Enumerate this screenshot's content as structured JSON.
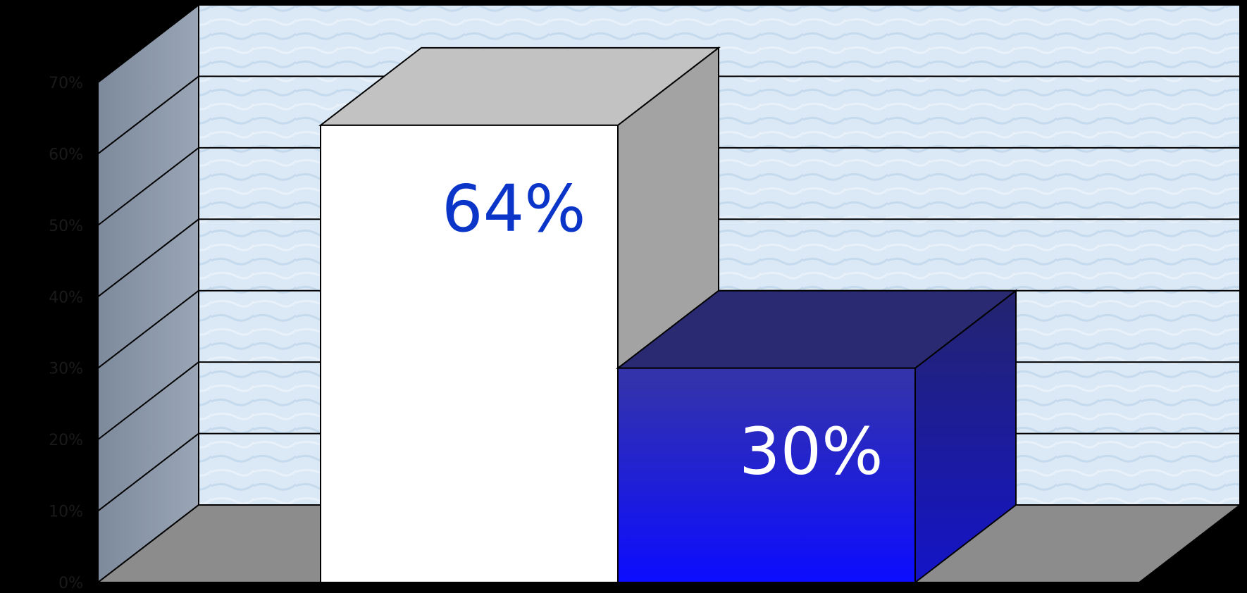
{
  "chart_data": {
    "type": "bar",
    "categories": [
      "",
      ""
    ],
    "values": [
      64,
      30
    ],
    "data_labels": [
      "64%",
      "30%"
    ],
    "ylim": [
      0,
      70
    ],
    "yticks": [
      0,
      10,
      20,
      30,
      40,
      50,
      60,
      70
    ],
    "ytick_labels": [
      "0%",
      "10%",
      "20%",
      "30%",
      "40%",
      "50%",
      "60%",
      "70%"
    ],
    "grid": true,
    "legend": "none",
    "three_d": true,
    "colors": {
      "bar_1": "#ffffff",
      "bar_2": "#1a1aee",
      "label_1": "#0a35c8",
      "label_2": "#ffffff",
      "wall": "#dceaf6",
      "side_wall": "#8a96a8",
      "floor": "#8c8c8c",
      "background": "#000000"
    }
  }
}
